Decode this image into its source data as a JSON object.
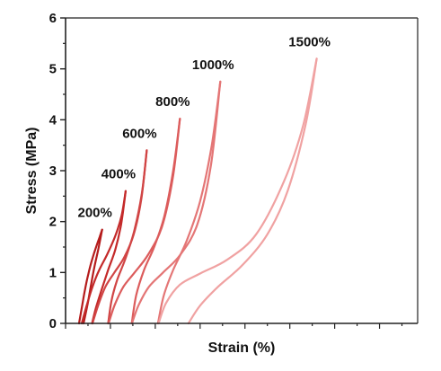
{
  "chart_data": {
    "type": "line",
    "xlabel": "Strain (%)",
    "ylabel": "Stress (MPa)",
    "ylim": [
      0,
      6
    ],
    "xlim": [
      0,
      1570
    ],
    "y_ticks": [
      "0",
      "1",
      "2",
      "3",
      "4",
      "5",
      "6"
    ],
    "x_tick_labels_shown": false,
    "grid": false,
    "legend": "none",
    "series": [
      {
        "name": "200%",
        "color": "#b51c1c",
        "loading": [
          [
            60,
            0
          ],
          [
            72,
            0.3
          ],
          [
            86,
            0.65
          ],
          [
            102,
            0.98
          ],
          [
            118,
            1.25
          ],
          [
            136,
            1.5
          ],
          [
            152,
            1.7
          ],
          [
            163,
            1.84
          ]
        ],
        "unloading": [
          [
            163,
            1.84
          ],
          [
            146,
            1.46
          ],
          [
            128,
            1.1
          ],
          [
            112,
            0.72
          ],
          [
            97,
            0.35
          ],
          [
            80,
            0
          ]
        ]
      },
      {
        "name": "400%",
        "color": "#c42a2a",
        "loading": [
          [
            72,
            0
          ],
          [
            94,
            0.35
          ],
          [
            120,
            0.72
          ],
          [
            150,
            1.05
          ],
          [
            185,
            1.35
          ],
          [
            222,
            1.72
          ],
          [
            250,
            2.12
          ],
          [
            268,
            2.6
          ]
        ],
        "unloading": [
          [
            268,
            2.6
          ],
          [
            248,
            1.95
          ],
          [
            222,
            1.45
          ],
          [
            190,
            1.05
          ],
          [
            160,
            0.65
          ],
          [
            135,
            0.3
          ],
          [
            118,
            0
          ]
        ]
      },
      {
        "name": "600%",
        "color": "#d14545",
        "loading": [
          [
            120,
            0
          ],
          [
            145,
            0.35
          ],
          [
            178,
            0.72
          ],
          [
            218,
            1.0
          ],
          [
            262,
            1.3
          ],
          [
            304,
            1.75
          ],
          [
            338,
            2.45
          ],
          [
            362,
            3.4
          ]
        ],
        "unloading": [
          [
            362,
            3.4
          ],
          [
            340,
            2.55
          ],
          [
            305,
            1.8
          ],
          [
            265,
            1.25
          ],
          [
            230,
            0.85
          ],
          [
            205,
            0.45
          ],
          [
            190,
            0
          ]
        ]
      },
      {
        "name": "800%",
        "color": "#dc5c5c",
        "loading": [
          [
            192,
            0
          ],
          [
            218,
            0.35
          ],
          [
            258,
            0.72
          ],
          [
            308,
            1.0
          ],
          [
            368,
            1.35
          ],
          [
            430,
            1.9
          ],
          [
            478,
            2.85
          ],
          [
            510,
            4.02
          ]
        ],
        "unloading": [
          [
            510,
            4.02
          ],
          [
            480,
            3.0
          ],
          [
            440,
            2.1
          ],
          [
            395,
            1.5
          ],
          [
            350,
            1.05
          ],
          [
            315,
            0.55
          ],
          [
            295,
            0
          ]
        ]
      },
      {
        "name": "1000%",
        "color": "#e47676",
        "loading": [
          [
            296,
            0
          ],
          [
            325,
            0.35
          ],
          [
            372,
            0.72
          ],
          [
            435,
            1.0
          ],
          [
            512,
            1.35
          ],
          [
            588,
            1.95
          ],
          [
            648,
            3.1
          ],
          [
            690,
            4.75
          ]
        ],
        "unloading": [
          [
            690,
            4.75
          ],
          [
            652,
            3.5
          ],
          [
            600,
            2.4
          ],
          [
            540,
            1.62
          ],
          [
            480,
            1.05
          ],
          [
            438,
            0.55
          ],
          [
            412,
            0
          ]
        ]
      },
      {
        "name": "1500%",
        "color": "#f0a2a2",
        "loading": [
          [
            415,
            0
          ],
          [
            448,
            0.4
          ],
          [
            510,
            0.76
          ],
          [
            600,
            0.98
          ],
          [
            720,
            1.25
          ],
          [
            850,
            1.75
          ],
          [
            975,
            2.8
          ],
          [
            1060,
            3.9
          ],
          [
            1120,
            5.2
          ]
        ],
        "unloading": [
          [
            1120,
            5.2
          ],
          [
            1070,
            3.9
          ],
          [
            990,
            2.6
          ],
          [
            900,
            1.75
          ],
          [
            790,
            1.15
          ],
          [
            680,
            0.72
          ],
          [
            600,
            0.35
          ],
          [
            548,
            0
          ]
        ]
      }
    ]
  }
}
